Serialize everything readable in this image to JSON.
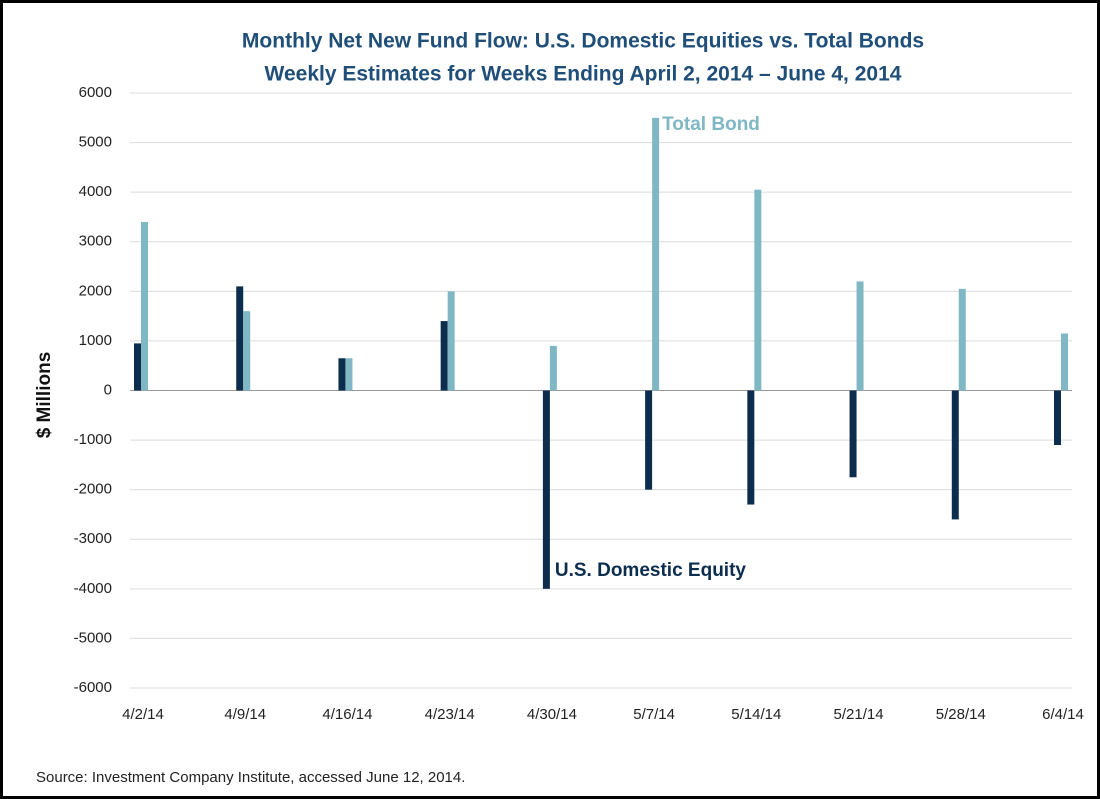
{
  "chart_data": {
    "type": "bar",
    "title": "Monthly Net New Fund Flow: U.S. Domestic Equities vs. Total Bonds",
    "subtitle": "Weekly Estimates  for Weeks Ending  April 2, 2014 – June 4, 2014",
    "y_label": "$ Millions",
    "source": "Source: Investment  Company Institute, accessed June 12, 2014.",
    "categories": [
      "4/2/14",
      "4/9/14",
      "4/16/14",
      "4/23/14",
      "4/30/14",
      "5/7/14",
      "5/14/14",
      "5/21/14",
      "5/28/14",
      "6/4/14"
    ],
    "series": [
      {
        "name": "U.S. Domestic Equity",
        "color": "#0d2d4f",
        "values": [
          950,
          2100,
          650,
          1400,
          -4000,
          -2000,
          -2300,
          -1750,
          -2600,
          -1100
        ]
      },
      {
        "name": "Total Bond",
        "color": "#7fb8c4",
        "values": [
          3400,
          1600,
          650,
          2000,
          900,
          5500,
          4050,
          2200,
          2050,
          1150
        ]
      }
    ],
    "ylim": [
      -6000,
      6000
    ],
    "yticks": [
      -6000,
      -5000,
      -4000,
      -3000,
      -2000,
      -1000,
      0,
      1000,
      2000,
      3000,
      4000,
      5000,
      6000
    ],
    "grid": true
  }
}
